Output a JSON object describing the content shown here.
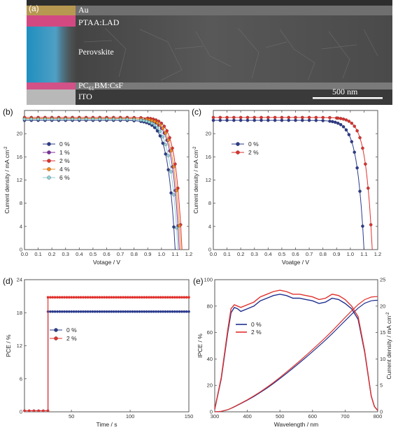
{
  "sem_panel": {
    "panel_label": "(a)",
    "layers": [
      "Au",
      "PTAA:LAD",
      "Perovskite",
      "PC",
      "61",
      "BM:CsF",
      "ITO"
    ],
    "scale_bar_label": "500 nm"
  },
  "chart_data": [
    {
      "panel": "(b)",
      "type": "line",
      "xlabel": "Votage / V",
      "ylabel": "Current density / mA cm",
      "ylabel_sup": "-2",
      "xlim": [
        0.0,
        1.2
      ],
      "ylim": [
        0,
        24
      ],
      "xticks": [
        "0.0",
        "0.1",
        "0.2",
        "0.3",
        "0.4",
        "0.5",
        "0.6",
        "0.7",
        "0.8",
        "0.9",
        "1.0",
        "1.1",
        "1.2"
      ],
      "yticks": [
        "0",
        "4",
        "8",
        "12",
        "16",
        "20"
      ],
      "legend_position": "left-middle",
      "series": [
        {
          "name": "0 %",
          "color": "#2b3a8c",
          "marker": "circle",
          "jsc": 22.3,
          "voc": 1.1,
          "n": 0.052
        },
        {
          "name": "1 %",
          "color": "#7b2f9e",
          "marker": "circle",
          "jsc": 22.6,
          "voc": 1.13,
          "n": 0.05
        },
        {
          "name": "2 %",
          "color": "#e0312d",
          "marker": "circle",
          "jsc": 22.8,
          "voc": 1.15,
          "n": 0.048
        },
        {
          "name": "4 %",
          "color": "#f08a1c",
          "marker": "circle",
          "jsc": 22.6,
          "voc": 1.14,
          "n": 0.05
        },
        {
          "name": "6 %",
          "color": "#8fd0d6",
          "marker": "circle",
          "jsc": 22.5,
          "voc": 1.12,
          "n": 0.055
        }
      ]
    },
    {
      "panel": "(c)",
      "type": "line",
      "xlabel": "Voatge / V",
      "ylabel": "Current density / mA cm",
      "ylabel_sup": "-2",
      "xlim": [
        0.0,
        1.2
      ],
      "ylim": [
        0,
        24
      ],
      "xticks": [
        "0.0",
        "0.1",
        "0.2",
        "0.3",
        "0.4",
        "0.5",
        "0.6",
        "0.7",
        "0.8",
        "0.9",
        "1.0",
        "1.1",
        "1.2"
      ],
      "yticks": [
        "0",
        "4",
        "8",
        "12",
        "16",
        "20"
      ],
      "legend_position": "left-middle",
      "series": [
        {
          "name": "0 %",
          "color": "#2b3a8c",
          "marker": "circle",
          "jsc": 22.3,
          "voc": 1.1,
          "n": 0.05
        },
        {
          "name": "2 %",
          "color": "#e0312d",
          "marker": "circle",
          "jsc": 22.8,
          "voc": 1.16,
          "n": 0.048
        }
      ]
    },
    {
      "panel": "(d)",
      "type": "line",
      "xlabel": "Time / s",
      "ylabel": "PCE / %",
      "xlim": [
        0,
        150
      ],
      "ylim": [
        0,
        24
      ],
      "xticks": [
        "50",
        "100",
        "150"
      ],
      "yticks": [
        "0",
        "6",
        "12",
        "18",
        "24"
      ],
      "legend_position": "left-middle",
      "series": [
        {
          "name": "0 %",
          "color": "#2b3a8c",
          "marker": "circle",
          "off_value": 0.2,
          "switch_time": 30,
          "on_value": 18.2
        },
        {
          "name": "2 %",
          "color": "#e0312d",
          "marker": "circle",
          "off_value": 0.2,
          "switch_time": 30,
          "on_value": 20.8
        }
      ]
    },
    {
      "panel": "(e)",
      "type": "line",
      "xlabel": "Wavelength / nm",
      "ylabel": "IPCE / %",
      "y2label": "Current density / mA cm",
      "y2label_sup": "-2",
      "xlim": [
        300,
        800
      ],
      "ylim": [
        0,
        100
      ],
      "y2lim": [
        0,
        25
      ],
      "xticks": [
        "300",
        "400",
        "500",
        "600",
        "700",
        "800"
      ],
      "yticks": [
        "0",
        "20",
        "40",
        "60",
        "80",
        "100"
      ],
      "y2ticks": [
        "0",
        "5",
        "10",
        "15",
        "20",
        "25"
      ],
      "legend_position": "center",
      "x": [
        300,
        320,
        340,
        350,
        360,
        370,
        380,
        400,
        420,
        440,
        460,
        480,
        500,
        520,
        540,
        560,
        580,
        600,
        620,
        640,
        660,
        680,
        700,
        720,
        740,
        760,
        780,
        790,
        800
      ],
      "series": [
        {
          "name": "0 %",
          "color": "#1f2f8f",
          "ipce": [
            2,
            25,
            60,
            75,
            79,
            78,
            76,
            78,
            80,
            84,
            86,
            88,
            89,
            88,
            86,
            86,
            85,
            84,
            82,
            83,
            86,
            85,
            82,
            78,
            70,
            45,
            12,
            4,
            1
          ],
          "jsc_final": 21.1
        },
        {
          "name": "2 %",
          "color": "#e0312d",
          "ipce": [
            2,
            26,
            62,
            78,
            81,
            80,
            79,
            81,
            83,
            87,
            89,
            91,
            92,
            91,
            89,
            89,
            88,
            87,
            85,
            86,
            89,
            88,
            85,
            80,
            72,
            46,
            12,
            4,
            1
          ],
          "jsc_final": 21.8
        }
      ]
    }
  ]
}
